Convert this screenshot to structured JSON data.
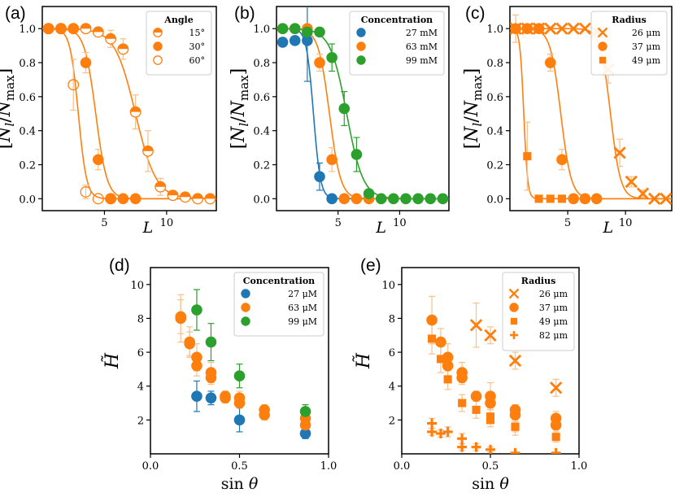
{
  "colors": {
    "blue": "#1f77b4",
    "orange": "#ff7f0e",
    "green": "#2ca02c",
    "cap": "#f7c08a"
  },
  "chart_data": [
    {
      "panel": "(a)",
      "type": "scatter",
      "xlabel": "L",
      "ylabel": "[N_l/N_max]",
      "xlim": [
        0,
        14
      ],
      "ylim": [
        -0.07,
        1.13
      ],
      "xticks": [
        5,
        10
      ],
      "yticks": [
        0.0,
        0.2,
        0.4,
        0.6,
        0.8,
        1.0
      ],
      "yticklabels": [
        "0.0",
        "0.2",
        "0.4",
        "0.6",
        "0.8",
        "1.0"
      ],
      "grid": false,
      "legend": {
        "title": "Angle",
        "position": "top-right"
      },
      "series": [
        {
          "name": "15°",
          "marker": "half-circle",
          "color": "#ff7f0e",
          "x": [
            0.5,
            1.5,
            2.5,
            3.5,
            4.5,
            5.5,
            6.5,
            7.5,
            8.5,
            9.5,
            10.5,
            11.5,
            12.5,
            13.5
          ],
          "y": [
            1.0,
            1.0,
            1.0,
            1.0,
            0.98,
            0.94,
            0.88,
            0.51,
            0.28,
            0.07,
            0.02,
            0.01,
            0.0,
            0.0
          ],
          "err": [
            0,
            0,
            0,
            0.01,
            0.02,
            0.05,
            0.06,
            0.1,
            0.12,
            0.05,
            0.02,
            0.01,
            0,
            0
          ],
          "fit": {
            "x0": 7.5,
            "k": 1.2
          }
        },
        {
          "name": "30°",
          "marker": "circle",
          "color": "#ff7f0e",
          "x": [
            0.5,
            1.5,
            2.5,
            3.5,
            4.5,
            5.5,
            6.5,
            7.5
          ],
          "y": [
            1.0,
            1.0,
            1.0,
            0.8,
            0.23,
            0.0,
            0.0,
            0.0
          ],
          "err": [
            0,
            0,
            0,
            0.06,
            0.06,
            0,
            0,
            0
          ],
          "fit": {
            "x0": 4.3,
            "k": 2.2
          }
        },
        {
          "name": "60°",
          "marker": "open-circle",
          "color": "#ff7f0e",
          "x": [
            0.5,
            1.5,
            2.5,
            3.5,
            4.5,
            5.5
          ],
          "y": [
            1.0,
            1.0,
            0.67,
            0.04,
            0.0,
            0.0
          ],
          "err": [
            0,
            0,
            0.15,
            0.04,
            0,
            0
          ],
          "fit": {
            "x0": 2.9,
            "k": 3.0
          }
        }
      ]
    },
    {
      "panel": "(b)",
      "type": "scatter",
      "xlabel": "L",
      "ylabel": "[N_l/N_max]",
      "xlim": [
        0,
        14
      ],
      "ylim": [
        -0.07,
        1.13
      ],
      "xticks": [
        5,
        10
      ],
      "yticks": [
        0.0,
        0.2,
        0.4,
        0.6,
        0.8,
        1.0
      ],
      "yticklabels": [
        "0.0",
        "0.2",
        "0.4",
        "0.6",
        "0.8",
        "1.0"
      ],
      "grid": false,
      "legend": {
        "title": "Concentration",
        "position": "top-right"
      },
      "series": [
        {
          "name": "27 mM",
          "marker": "circle",
          "color": "#1f77b4",
          "x": [
            0.5,
            1.5,
            2.5,
            3.5,
            4.5
          ],
          "y": [
            0.92,
            0.93,
            0.93,
            0.13,
            0.0
          ],
          "err": [
            0.02,
            0.02,
            0.24,
            0.08,
            0
          ],
          "fit": {
            "x0": 3.0,
            "k": 3.5
          }
        },
        {
          "name": "63 mM",
          "marker": "circle",
          "color": "#ff7f0e",
          "x": [
            0.5,
            1.5,
            2.5,
            3.5,
            4.5,
            5.5,
            6.5,
            7.5
          ],
          "y": [
            1.0,
            1.0,
            1.0,
            0.8,
            0.23,
            0.0,
            0.0,
            0.0
          ],
          "err": [
            0,
            0,
            0.02,
            0.05,
            0.07,
            0,
            0,
            0
          ],
          "fit": {
            "x0": 4.3,
            "k": 2.2
          }
        },
        {
          "name": "99 mM",
          "marker": "circle",
          "color": "#2ca02c",
          "x": [
            0.5,
            1.5,
            2.5,
            3.5,
            4.5,
            5.5,
            6.5,
            7.5,
            8.5,
            9.5,
            10.5,
            11.5,
            12.5,
            13.5
          ],
          "y": [
            1.0,
            1.0,
            0.98,
            0.98,
            0.83,
            0.53,
            0.26,
            0.03,
            0.0,
            0.0,
            0.0,
            0.0,
            0.0,
            0.0
          ],
          "err": [
            0,
            0,
            0.02,
            0.02,
            0.08,
            0.1,
            0.1,
            0.02,
            0,
            0,
            0,
            0,
            0,
            0
          ],
          "fit": {
            "x0": 5.7,
            "k": 1.5
          }
        }
      ]
    },
    {
      "panel": "(c)",
      "type": "scatter",
      "xlabel": "L",
      "ylabel": "[N_l/N_max]",
      "xlim": [
        0,
        14
      ],
      "ylim": [
        -0.07,
        1.13
      ],
      "xticks": [
        5,
        10
      ],
      "yticks": [
        0.0,
        0.2,
        0.4,
        0.6,
        0.8,
        1.0
      ],
      "yticklabels": [
        "0.0",
        "0.2",
        "0.4",
        "0.6",
        "0.8",
        "1.0"
      ],
      "grid": false,
      "legend": {
        "title": "Radius",
        "position": "top-right"
      },
      "series": [
        {
          "name": "26 μm",
          "marker": "x",
          "color": "#ff7f0e",
          "x": [
            0.5,
            1.5,
            2.5,
            3.5,
            4.5,
            5.5,
            6.5,
            7.5,
            8.5,
            9.5,
            10.5,
            11.5,
            12.5,
            13.5
          ],
          "y": [
            1.0,
            1.0,
            1.0,
            1.0,
            1.0,
            1.0,
            1.0,
            0.98,
            0.76,
            0.27,
            0.1,
            0.03,
            0.0,
            0.0
          ],
          "err": [
            0,
            0,
            0,
            0,
            0,
            0,
            0,
            0.02,
            0.08,
            0.08,
            0.03,
            0.02,
            0,
            0
          ],
          "fit": {
            "x0": 8.7,
            "k": 2.3
          }
        },
        {
          "name": "37 μm",
          "marker": "circle",
          "color": "#ff7f0e",
          "x": [
            0.5,
            1.5,
            2.5,
            3.5,
            4.5,
            5.5,
            6.5,
            7.5
          ],
          "y": [
            1.0,
            1.0,
            1.0,
            0.8,
            0.23,
            0.0,
            0.0,
            0.0
          ],
          "err": [
            0,
            0,
            0,
            0.05,
            0.06,
            0,
            0,
            0
          ],
          "fit": {
            "x0": 4.4,
            "k": 2.2
          }
        },
        {
          "name": "49 μm",
          "marker": "square",
          "color": "#ff7f0e",
          "x": [
            0.5,
            1.5,
            2.5,
            3.5,
            4.5,
            5.5,
            6.5
          ],
          "y": [
            1.0,
            0.25,
            0.0,
            0.0,
            0.0,
            0.0,
            0.0
          ],
          "err": [
            0.08,
            0.2,
            0,
            0,
            0,
            0,
            0
          ],
          "fit": {
            "x0": 1.2,
            "k": 6.0
          }
        }
      ]
    },
    {
      "panel": "(d)",
      "type": "scatter",
      "xlabel": "sin θ",
      "ylabel": "H̃",
      "xlim": [
        0.0,
        1.0
      ],
      "ylim": [
        0,
        11
      ],
      "xticks": [
        0.0,
        0.5,
        1.0
      ],
      "xticklabels": [
        "0.0",
        "0.5",
        "1.0"
      ],
      "yticks": [
        2,
        4,
        6,
        8,
        10
      ],
      "yticklabels": [
        "2",
        "4",
        "6",
        "8",
        "10"
      ],
      "grid": false,
      "legend": {
        "title": "Concentration",
        "position": "top-right"
      },
      "series": [
        {
          "name": "27 μM",
          "marker": "circle",
          "color": "#1f77b4",
          "x": [
            0.26,
            0.34,
            0.5,
            0.87
          ],
          "y": [
            3.4,
            3.3,
            2.0,
            1.2
          ],
          "err": [
            0.9,
            0.4,
            0.7,
            0.3
          ]
        },
        {
          "name": "63 μM",
          "marker": "circle",
          "color": "#ff7f0e",
          "x": [
            0.17,
            0.17,
            0.22,
            0.22,
            0.26,
            0.26,
            0.34,
            0.34,
            0.42,
            0.42,
            0.5,
            0.5,
            0.64,
            0.64,
            0.87,
            0.87
          ],
          "y": [
            8.0,
            8.1,
            6.6,
            6.5,
            5.7,
            5.2,
            4.8,
            4.5,
            3.3,
            3.4,
            3.3,
            3.0,
            2.6,
            2.3,
            2.1,
            1.7
          ],
          "err": [
            1.4,
            1.0,
            0.9,
            0.7,
            0.8,
            0.6,
            0.6,
            0.4,
            0.3,
            0.3,
            0.4,
            0.3,
            0.3,
            0.3,
            0.3,
            0.3
          ]
        },
        {
          "name": "99 μM",
          "marker": "circle",
          "color": "#2ca02c",
          "x": [
            0.26,
            0.34,
            0.5,
            0.87
          ],
          "y": [
            8.5,
            6.6,
            4.6,
            2.5
          ],
          "err": [
            1.2,
            1.1,
            0.7,
            0.4
          ]
        }
      ]
    },
    {
      "panel": "(e)",
      "type": "scatter",
      "xlabel": "sin θ",
      "ylabel": "H̃",
      "xlim": [
        0.0,
        1.0
      ],
      "ylim": [
        0,
        11
      ],
      "xticks": [
        0.0,
        0.5,
        1.0
      ],
      "xticklabels": [
        "0.0",
        "0.5",
        "1.0"
      ],
      "yticks": [
        2,
        4,
        6,
        8,
        10
      ],
      "yticklabels": [
        "2",
        "4",
        "6",
        "8",
        "10"
      ],
      "grid": false,
      "legend": {
        "title": "Radius",
        "position": "top-right"
      },
      "series": [
        {
          "name": "26 μm",
          "marker": "x",
          "color": "#ff7f0e",
          "x": [
            0.42,
            0.5,
            0.64,
            0.87
          ],
          "y": [
            7.6,
            7.0,
            5.5,
            3.9
          ],
          "err": [
            1.3,
            0.5,
            0.5,
            0.5
          ]
        },
        {
          "name": "37 μm",
          "marker": "circle",
          "color": "#ff7f0e",
          "x": [
            0.17,
            0.22,
            0.26,
            0.26,
            0.34,
            0.34,
            0.42,
            0.5,
            0.5,
            0.64,
            0.64,
            0.87,
            0.87
          ],
          "y": [
            7.9,
            6.6,
            5.7,
            5.2,
            4.8,
            4.5,
            3.4,
            3.4,
            3.0,
            2.6,
            2.3,
            2.1,
            1.7
          ],
          "err": [
            1.4,
            0.8,
            0.8,
            0.6,
            0.6,
            0.4,
            0.3,
            0.8,
            0.3,
            0.3,
            0.3,
            0.4,
            0.3
          ]
        },
        {
          "name": "49 μm",
          "marker": "square",
          "color": "#ff7f0e",
          "x": [
            0.17,
            0.22,
            0.26,
            0.34,
            0.42,
            0.5,
            0.5,
            0.64,
            0.64,
            0.87
          ],
          "y": [
            6.8,
            5.6,
            4.4,
            3.0,
            2.6,
            2.0,
            2.2,
            1.6,
            1.6,
            1.0
          ],
          "err": [
            0.9,
            0.8,
            0.6,
            0.5,
            0.5,
            0.4,
            0.4,
            0.5,
            0.3,
            0.3
          ]
        },
        {
          "name": "82 μm",
          "marker": "plus",
          "color": "#ff7f0e",
          "x": [
            0.17,
            0.17,
            0.22,
            0.26,
            0.34,
            0.34,
            0.42,
            0.5,
            0.64,
            0.87
          ],
          "y": [
            1.8,
            1.3,
            1.2,
            1.3,
            0.9,
            0.4,
            0.4,
            0.25,
            0.05,
            0.05
          ],
          "err": [
            0.3,
            0.2,
            0.2,
            0.3,
            0.3,
            0.2,
            0.2,
            0.15,
            0.05,
            0.05
          ]
        }
      ]
    }
  ]
}
